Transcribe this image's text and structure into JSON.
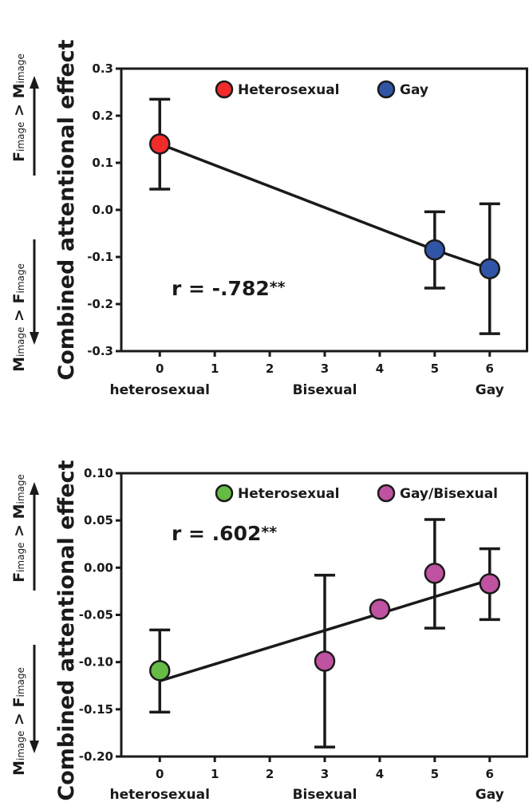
{
  "chart_data": [
    {
      "type": "scatter",
      "ylabel": "Combined attentional effect",
      "ylim": [
        -0.3,
        0.3
      ],
      "yticks": [
        "0.3",
        "0.2",
        "0.1",
        "0.0",
        "-0.1",
        "-0.2",
        "-0.3"
      ],
      "xlim": [
        -0.7,
        6.7
      ],
      "xticks": [
        "0",
        "1",
        "2",
        "3",
        "4",
        "5",
        "6"
      ],
      "xcategory_labels": [
        {
          "x": 0,
          "label": "heterosexual"
        },
        {
          "x": 3,
          "label": "Bisexual"
        },
        {
          "x": 6,
          "label": "Gay"
        }
      ],
      "up_arrow": {
        "f": "F",
        "sub1": "image",
        "gt": ">",
        "m": "M",
        "sub2": "image"
      },
      "down_arrow": {
        "m": "M",
        "sub1": "image",
        "gt": ">",
        "f": "F",
        "sub2": "image"
      },
      "legend": [
        {
          "name": "Heterosexual",
          "color": "#f22b2b"
        },
        {
          "name": "Gay",
          "color": "#3155a6"
        }
      ],
      "annotation": {
        "text": "r = -.782",
        "stars": "**"
      },
      "points": [
        {
          "x": 0,
          "y": 0.14,
          "err_low": 0.044,
          "err_high": 0.235,
          "group": 0
        },
        {
          "x": 5,
          "y": -0.085,
          "err_low": -0.166,
          "err_high": -0.004,
          "group": 1
        },
        {
          "x": 6,
          "y": -0.125,
          "err_low": -0.263,
          "err_high": 0.013,
          "group": 1
        }
      ],
      "fit_line": [
        [
          0,
          0.14
        ],
        [
          5,
          -0.085
        ],
        [
          6,
          -0.125
        ]
      ]
    },
    {
      "type": "scatter",
      "ylabel": "Combined attentional effect",
      "ylim": [
        -0.2,
        0.1
      ],
      "yticks": [
        "0.10",
        "0.05",
        "0.00",
        "-0.05",
        "-0.10",
        "-0.15",
        "-0.20"
      ],
      "xlim": [
        -0.7,
        6.7
      ],
      "xticks": [
        "0",
        "1",
        "2",
        "3",
        "4",
        "5",
        "6"
      ],
      "xcategory_labels": [
        {
          "x": 0,
          "label": "heterosexual"
        },
        {
          "x": 3,
          "label": "Bisexual"
        },
        {
          "x": 6,
          "label": "Gay"
        }
      ],
      "up_arrow": {
        "f": "F",
        "sub1": "image",
        "gt": ">",
        "m": "M",
        "sub2": "image"
      },
      "down_arrow": {
        "m": "M",
        "sub1": "image",
        "gt": ">",
        "f": "F",
        "sub2": "image"
      },
      "legend": [
        {
          "name": "Heterosexual",
          "color": "#66bb44"
        },
        {
          "name": "Gay/Bisexual",
          "color": "#c052a2"
        }
      ],
      "annotation": {
        "text": "r = .602",
        "stars": "**"
      },
      "points": [
        {
          "x": 0,
          "y": -0.109,
          "err_low": -0.153,
          "err_high": -0.066,
          "group": 0
        },
        {
          "x": 3,
          "y": -0.099,
          "err_low": -0.19,
          "err_high": -0.008,
          "group": 1
        },
        {
          "x": 4,
          "y": -0.044,
          "group": 1
        },
        {
          "x": 5,
          "y": -0.006,
          "err_low": -0.064,
          "err_high": 0.051,
          "group": 1
        },
        {
          "x": 6,
          "y": -0.017,
          "err_low": -0.055,
          "err_high": 0.02,
          "group": 1
        }
      ],
      "fit_line": [
        [
          0,
          -0.12
        ],
        [
          6,
          -0.013
        ]
      ]
    }
  ]
}
